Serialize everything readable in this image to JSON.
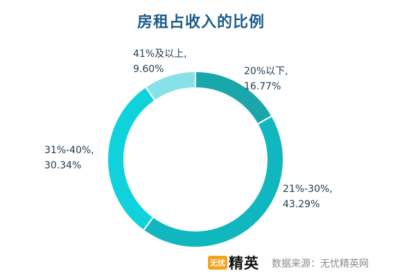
{
  "chart_data": {
    "type": "pie",
    "title": "房租占收入的比例",
    "donut": true,
    "slices": [
      {
        "label": "20%以下,",
        "value_text": "16.77%",
        "value": 16.77,
        "color": "#1aa7ab"
      },
      {
        "label": "21%-30%,",
        "value_text": "43.29%",
        "value": 43.29,
        "color": "#11b7bf"
      },
      {
        "label": "31%-40%,",
        "value_text": "30.34%",
        "value": 30.34,
        "color": "#0fd2dd"
      },
      {
        "label": "41%及以上,",
        "value_text": "9.60%",
        "value": 9.6,
        "color": "#86e2e8"
      }
    ],
    "start_angle": "top",
    "direction": "clockwise"
  },
  "footer": {
    "logo_badge": "无忧",
    "logo_text": "精英",
    "source": "数据来源：无忧精英网"
  }
}
